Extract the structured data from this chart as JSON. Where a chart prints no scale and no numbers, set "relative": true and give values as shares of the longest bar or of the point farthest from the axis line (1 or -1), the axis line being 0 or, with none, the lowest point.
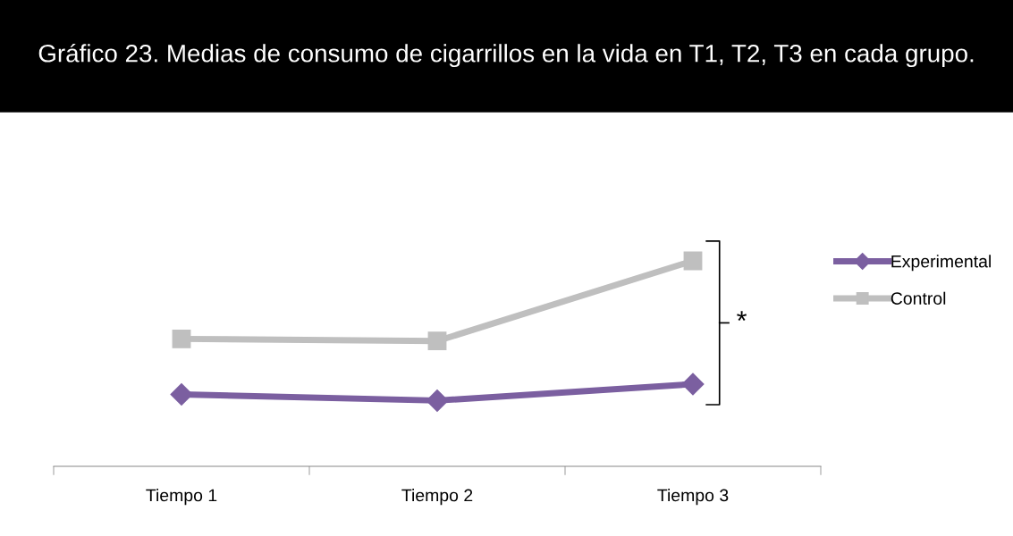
{
  "chart_data": {
    "type": "line",
    "title": "Gráfico 23. Medias de consumo de cigarrillos en la vida en T1, T2, T3 en cada grupo.",
    "categories": [
      "Tiempo 1",
      "Tiempo 2",
      "Tiempo 3"
    ],
    "relative": true,
    "series": [
      {
        "name": "Experimental",
        "color": "#7b5fa0",
        "marker": "diamond",
        "values": [
          0.35,
          0.32,
          0.4
        ]
      },
      {
        "name": "Control",
        "color": "#bfbfbf",
        "marker": "square",
        "values": [
          0.62,
          0.61,
          1.0
        ]
      }
    ],
    "annotations": [
      "*"
    ],
    "legend": "right",
    "grid": false
  }
}
